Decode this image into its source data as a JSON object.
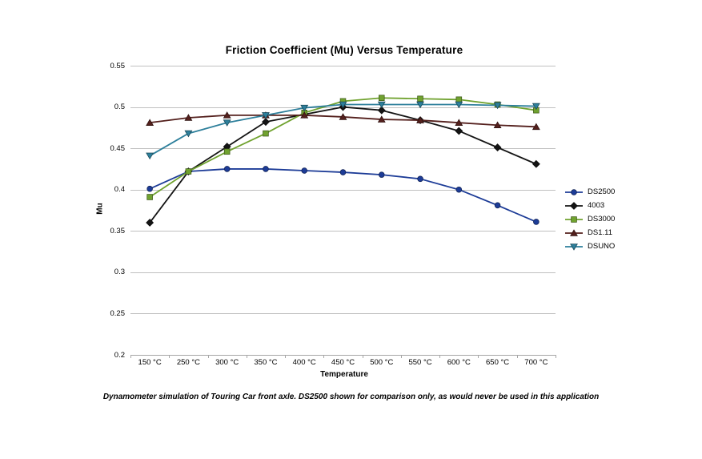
{
  "chart_data": {
    "type": "line",
    "title": "Friction Coefficient (Mu) Versus Temperature",
    "xlabel": "Temperature",
    "ylabel": "Mu",
    "ylim": [
      0.2,
      0.55
    ],
    "y_tick_labels": [
      "0.55",
      "0.5",
      "0.45",
      "0.4",
      "0.35",
      "0.3",
      "0.25",
      "0.2"
    ],
    "grid": true,
    "legend_position": "right",
    "categories": [
      "150 °C",
      "250 °C",
      "300 °C",
      "350 °C",
      "400 °C",
      "450 °C",
      "500 °C",
      "550 °C",
      "600 °C",
      "650 °C",
      "700 °C"
    ],
    "series": [
      {
        "name": "DS2500",
        "color": "#1d3c97",
        "marker": "circle",
        "values": [
          0.401,
          0.422,
          0.425,
          0.425,
          0.423,
          0.421,
          0.418,
          0.413,
          0.4,
          0.381,
          0.361
        ]
      },
      {
        "name": "4003",
        "color": "#141414",
        "marker": "diamond",
        "values": [
          0.36,
          0.422,
          0.452,
          0.482,
          0.491,
          0.5,
          0.496,
          0.484,
          0.471,
          0.451,
          0.431
        ]
      },
      {
        "name": "DS3000",
        "color": "#70a22f",
        "marker": "square",
        "values": [
          0.391,
          0.422,
          0.446,
          0.468,
          0.493,
          0.507,
          0.511,
          0.51,
          0.509,
          0.503,
          0.496
        ]
      },
      {
        "name": "DS1.11",
        "color": "#54201d",
        "marker": "triangle-up",
        "values": [
          0.481,
          0.487,
          0.49,
          0.49,
          0.49,
          0.488,
          0.485,
          0.484,
          0.481,
          0.478,
          0.476
        ]
      },
      {
        "name": "DSUNO",
        "color": "#2d7f9b",
        "marker": "triangle-down",
        "values": [
          0.441,
          0.468,
          0.481,
          0.49,
          0.499,
          0.503,
          0.503,
          0.503,
          0.503,
          0.502,
          0.501
        ]
      }
    ]
  },
  "caption": "Dynamometer simulation of Touring Car front axle. DS2500 shown for comparison only, as would never be used in this application",
  "colors": {
    "gridline": "#c0c0c0",
    "axis": "#a6a6a6",
    "text": "#000000",
    "background": "#ffffff"
  }
}
